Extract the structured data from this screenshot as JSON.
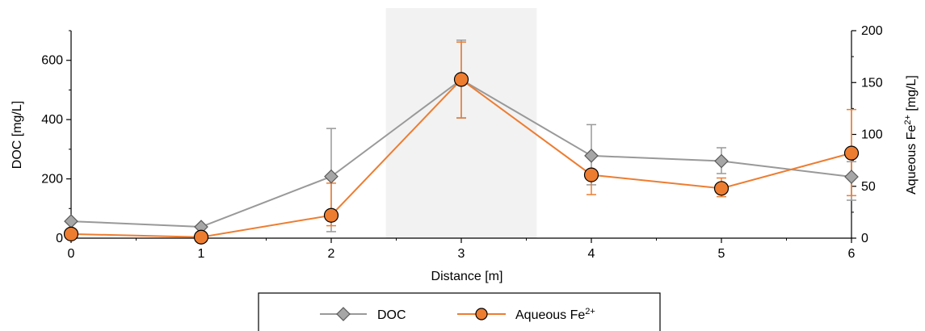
{
  "chart_data": {
    "type": "line",
    "x": [
      0,
      1,
      2,
      3,
      4,
      5,
      6
    ],
    "xlabel": "Distance [m]",
    "xlim": [
      0,
      6
    ],
    "x_ticks": [
      "0",
      "1",
      "2",
      "3",
      "4",
      "5",
      "6"
    ],
    "ylabel_left": "DOC [mg/L]",
    "ylim_left": [
      0,
      700
    ],
    "y_ticks_left": [
      "0",
      "200",
      "400",
      "600"
    ],
    "ylabel_right_base": "Aqueous Fe",
    "ylabel_right_sup": "2+",
    "ylabel_right_unit": " [mg/L]",
    "ylim_right": [
      0,
      200
    ],
    "y_ticks_right": [
      "0",
      "50",
      "100",
      "150",
      "200"
    ],
    "shaded_region_x": [
      2.42,
      3.58
    ],
    "series": [
      {
        "name": "DOC",
        "axis": "left",
        "marker": "diamond",
        "color": "#999999",
        "marker_fill": "#a6a6a6",
        "values": [
          57,
          38,
          208,
          535,
          278,
          260,
          207
        ],
        "error": [
          null,
          null,
          [
            22,
            370
          ],
          [
            405,
            668
          ],
          [
            180,
            383
          ],
          [
            218,
            305
          ],
          [
            128,
            258
          ]
        ]
      },
      {
        "name": "Aqueous Fe",
        "name_sup": "2+",
        "axis": "right",
        "marker": "circle",
        "color": "#ed7d31",
        "marker_fill": "#ed7d31",
        "values": [
          4,
          1,
          22,
          153,
          61,
          48,
          82
        ],
        "error": [
          null,
          null,
          [
            12,
            53
          ],
          [
            116,
            189
          ],
          [
            42,
            61
          ],
          [
            40,
            58
          ],
          [
            41,
            124
          ]
        ]
      }
    ],
    "legend_position": "bottom-center",
    "grid": false
  }
}
